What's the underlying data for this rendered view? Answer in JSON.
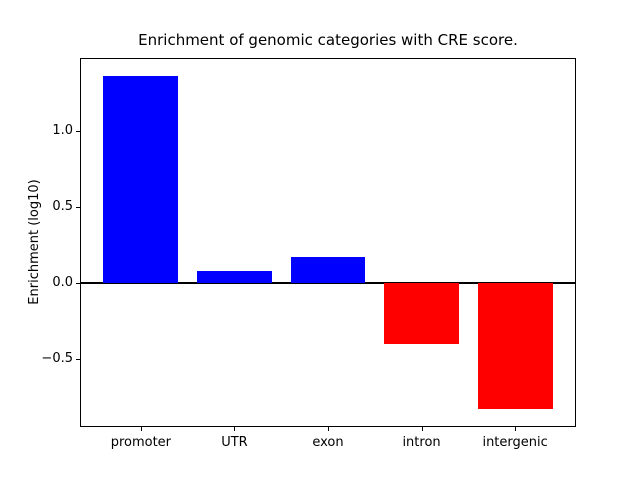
{
  "figure": {
    "background_color": "#ffffff",
    "frame_color": "#000000"
  },
  "chart_data": {
    "type": "bar",
    "title": "Enrichment of genomic categories with CRE score.",
    "ylabel": "Enrichment (log10)",
    "xlabel": "",
    "categories": [
      "promoter",
      "UTR",
      "exon",
      "intron",
      "intergenic"
    ],
    "values": [
      1.36,
      0.08,
      0.17,
      -0.4,
      -0.83
    ],
    "bar_colors": [
      "#0000ff",
      "#0000ff",
      "#0000ff",
      "#ff0000",
      "#ff0000"
    ],
    "positive_color": "#0000ff",
    "negative_color": "#ff0000",
    "bar_width": 0.8,
    "xlim": [
      -0.64,
      4.64
    ],
    "ylim": [
      -0.94,
      1.47
    ],
    "yticks": [
      {
        "label": "1.0",
        "value": 1.0
      },
      {
        "label": "0.5",
        "value": 0.5
      },
      {
        "label": "0.0",
        "value": 0.0
      },
      {
        "label": "−0.5",
        "value": -0.5
      }
    ],
    "grid": false,
    "legend": null,
    "zero_line": {
      "value": 0.0,
      "color": "#000000",
      "linewidth": 2
    }
  }
}
